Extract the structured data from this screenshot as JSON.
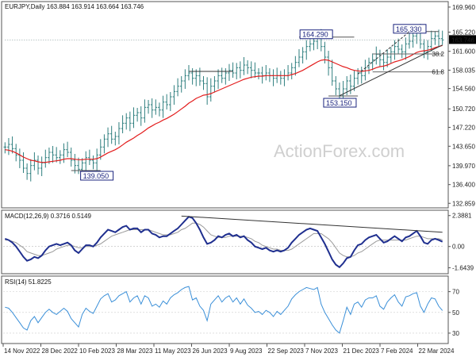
{
  "header": {
    "price_title": "EURJPY,Daily  163.884 163.914 163.664 163.746",
    "macd_title": "MACD(12,26,9) 0.3716 0.5149",
    "rsi_title": "RSI(14) 51.8225"
  },
  "watermark": "ActionForex.com",
  "colors": {
    "bar": "#2f7f7f",
    "ema": "#e31c1c",
    "macd": "#1f2f8f",
    "signal": "#9a9a9a",
    "rsi": "#3a8fd8",
    "trend": "#333333",
    "box": "#1a237e",
    "current_label_bg": "#000000"
  },
  "chart_data": [
    {
      "type": "ohlc",
      "panel": "price",
      "symbol": "EURJPY",
      "timeframe": "Daily",
      "ylim": [
        132.0,
        171.0
      ],
      "y_ticks": [
        "169.960",
        "165.220",
        "161.600",
        "158.035",
        "154.560",
        "150.720",
        "147.220",
        "143.650",
        "139.970",
        "136.400",
        "132.859"
      ],
      "y_tick_values": [
        169.96,
        165.22,
        161.6,
        158.035,
        154.56,
        150.72,
        147.22,
        143.65,
        139.97,
        136.4,
        132.859
      ],
      "current_price": "163.746",
      "current_value": 163.746,
      "x_ticks": [
        "14 Nov 2022",
        "28 Dec 2022",
        "10 Feb 2023",
        "28 Mar 2023",
        "11 May 2023",
        "26 Jun 2023",
        "9 Aug 2023",
        "22 Sep 2023",
        "7 Nov 2023",
        "21 Dec 2023",
        "7 Feb 2024",
        "22 Mar 2024"
      ],
      "close": [
        143.5,
        144.0,
        143.2,
        142.0,
        141.0,
        139.5,
        138.5,
        140.0,
        141.0,
        139.5,
        140.5,
        141.5,
        142.5,
        142.0,
        141.5,
        142.0,
        143.0,
        142.5,
        141.0,
        140.0,
        139.3,
        140.5,
        141.5,
        141.0,
        140.5,
        142.0,
        143.5,
        145.0,
        146.0,
        145.0,
        145.5,
        147.0,
        148.0,
        149.0,
        148.0,
        149.5,
        150.0,
        149.0,
        151.0,
        151.5,
        150.5,
        151.0,
        150.5,
        152.0,
        151.5,
        153.0,
        154.0,
        155.0,
        156.0,
        157.0,
        157.5,
        156.5,
        157.0,
        156.0,
        155.5,
        153.0,
        155.0,
        156.0,
        157.0,
        156.5,
        157.5,
        158.0,
        157.5,
        158.5,
        158.0,
        159.0,
        158.5,
        158.0,
        157.5,
        157.5,
        157.0,
        157.5,
        157.0,
        156.5,
        157.0,
        156.5,
        157.0,
        157.5,
        158.5,
        159.5,
        160.5,
        161.5,
        162.5,
        163.0,
        163.5,
        164.3,
        162.5,
        160.5,
        158.5,
        156.0,
        154.5,
        153.2,
        154.5,
        156.0,
        155.0,
        156.5,
        157.5,
        157.0,
        158.5,
        159.5,
        160.0,
        161.0,
        160.0,
        159.5,
        160.5,
        161.5,
        162.5,
        162.0,
        161.5,
        163.0,
        163.5,
        164.5,
        165.3,
        163.0,
        161.5,
        162.5,
        164.0,
        164.5,
        164.0,
        163.746
      ],
      "ema": [
        143.0,
        142.9,
        142.7,
        142.4,
        142.0,
        141.6,
        141.3,
        141.0,
        140.9,
        140.7,
        140.6,
        140.6,
        140.7,
        140.8,
        140.9,
        141.0,
        141.2,
        141.3,
        141.3,
        141.2,
        141.1,
        141.1,
        141.2,
        141.2,
        141.2,
        141.3,
        141.6,
        142.0,
        142.4,
        142.7,
        143.0,
        143.4,
        143.9,
        144.4,
        144.8,
        145.2,
        145.7,
        146.1,
        146.6,
        147.1,
        147.5,
        147.9,
        148.2,
        148.6,
        148.9,
        149.3,
        149.7,
        150.2,
        150.7,
        151.2,
        151.8,
        152.2,
        152.7,
        153.0,
        153.3,
        153.4,
        153.6,
        153.9,
        154.2,
        154.5,
        154.8,
        155.1,
        155.4,
        155.7,
        156.0,
        156.3,
        156.5,
        156.7,
        156.8,
        156.9,
        156.9,
        157.0,
        157.0,
        157.0,
        157.0,
        157.0,
        157.0,
        157.0,
        157.2,
        157.4,
        157.7,
        158.0,
        158.4,
        158.8,
        159.2,
        159.6,
        159.9,
        160.0,
        159.9,
        159.6,
        159.3,
        159.0,
        158.7,
        158.5,
        158.2,
        158.0,
        157.9,
        157.8,
        157.9,
        158.0,
        158.2,
        158.5,
        158.7,
        158.8,
        159.0,
        159.3,
        159.6,
        159.8,
        160.0,
        160.3,
        160.6,
        161.0,
        161.4,
        161.6,
        161.7,
        161.8,
        162.0,
        162.3,
        162.5,
        162.7
      ],
      "annotations": [
        {
          "label": "164.290",
          "value": 164.29
        },
        {
          "label": "165.330",
          "value": 165.33
        },
        {
          "label": "153.150",
          "value": 153.15
        },
        {
          "label": "139.050",
          "value": 139.05
        },
        {
          "label": "38.2",
          "value": 161.1
        },
        {
          "label": "61.8",
          "value": 157.7
        }
      ]
    },
    {
      "type": "macd",
      "panel": "macd",
      "ylim": [
        -2.1,
        2.8
      ],
      "y_ticks": [
        "2.3881",
        "0.00",
        "-1.6439"
      ],
      "y_tick_values": [
        2.3881,
        0.0,
        -1.6439
      ],
      "macd": [
        0.6,
        0.5,
        0.3,
        0.0,
        -0.4,
        -0.8,
        -1.1,
        -1.0,
        -0.8,
        -0.9,
        -0.7,
        -0.3,
        0.0,
        0.1,
        0.2,
        0.1,
        0.2,
        0.3,
        0.1,
        -0.3,
        -0.5,
        -0.2,
        0.1,
        0.1,
        0.0,
        0.3,
        0.7,
        1.0,
        1.3,
        1.2,
        1.1,
        1.3,
        1.5,
        1.6,
        1.3,
        1.4,
        1.4,
        1.1,
        1.3,
        1.3,
        1.0,
        0.9,
        0.7,
        0.8,
        0.8,
        1.0,
        1.2,
        1.4,
        1.7,
        2.0,
        2.3,
        2.2,
        1.8,
        1.3,
        0.7,
        0.2,
        0.3,
        0.5,
        0.8,
        0.7,
        0.9,
        1.0,
        0.8,
        0.9,
        0.7,
        0.8,
        0.5,
        0.3,
        0.0,
        -0.1,
        -0.2,
        -0.1,
        -0.3,
        -0.4,
        -0.3,
        -0.4,
        -0.3,
        -0.1,
        0.3,
        0.6,
        0.9,
        1.1,
        1.3,
        1.4,
        1.3,
        1.2,
        0.7,
        0.2,
        -0.4,
        -1.0,
        -1.4,
        -1.6,
        -1.3,
        -0.9,
        -0.8,
        -0.3,
        0.1,
        0.2,
        0.5,
        0.7,
        0.8,
        0.9,
        0.6,
        0.3,
        0.4,
        0.6,
        0.8,
        0.6,
        0.4,
        0.7,
        0.8,
        1.0,
        1.2,
        0.8,
        0.3,
        0.2,
        0.5,
        0.6,
        0.5,
        0.37
      ],
      "signal": [
        0.5,
        0.5,
        0.4,
        0.3,
        0.1,
        -0.1,
        -0.4,
        -0.5,
        -0.6,
        -0.7,
        -0.7,
        -0.6,
        -0.5,
        -0.4,
        -0.2,
        -0.1,
        0.0,
        0.1,
        0.1,
        0.0,
        -0.1,
        -0.1,
        0.0,
        0.0,
        0.0,
        0.1,
        0.2,
        0.4,
        0.6,
        0.8,
        0.9,
        1.0,
        1.1,
        1.2,
        1.3,
        1.3,
        1.3,
        1.3,
        1.3,
        1.3,
        1.2,
        1.1,
        1.0,
        0.9,
        0.9,
        0.9,
        1.0,
        1.1,
        1.3,
        1.4,
        1.6,
        1.8,
        1.8,
        1.7,
        1.5,
        1.2,
        0.9,
        0.8,
        0.7,
        0.7,
        0.7,
        0.8,
        0.8,
        0.8,
        0.8,
        0.8,
        0.7,
        0.6,
        0.4,
        0.3,
        0.1,
        0.0,
        -0.1,
        -0.2,
        -0.2,
        -0.3,
        -0.3,
        -0.3,
        -0.2,
        0.0,
        0.2,
        0.4,
        0.6,
        0.8,
        1.0,
        1.0,
        1.0,
        0.8,
        0.6,
        0.3,
        -0.1,
        -0.5,
        -0.7,
        -0.8,
        -0.8,
        -0.7,
        -0.5,
        -0.4,
        -0.2,
        0.0,
        0.2,
        0.4,
        0.5,
        0.5,
        0.5,
        0.5,
        0.5,
        0.5,
        0.5,
        0.5,
        0.6,
        0.7,
        0.8,
        0.8,
        0.7,
        0.6,
        0.6,
        0.6,
        0.6,
        0.51
      ],
      "trendline": {
        "from": [
          48,
          2.35
        ],
        "to": [
          119,
          1.1
        ]
      }
    },
    {
      "type": "line",
      "panel": "rsi",
      "ylim": [
        20,
        85
      ],
      "y_ticks": [
        "70",
        "50",
        "30"
      ],
      "y_tick_values": [
        70,
        50,
        30
      ],
      "values": [
        55,
        54,
        50,
        45,
        40,
        35,
        33,
        42,
        46,
        40,
        45,
        50,
        53,
        50,
        48,
        51,
        54,
        51,
        44,
        40,
        36,
        48,
        54,
        51,
        49,
        56,
        63,
        66,
        68,
        60,
        62,
        66,
        68,
        70,
        60,
        64,
        66,
        58,
        66,
        64,
        56,
        58,
        55,
        61,
        58,
        64,
        67,
        69,
        72,
        74,
        75,
        62,
        64,
        56,
        52,
        42,
        58,
        62,
        66,
        60,
        64,
        66,
        60,
        64,
        58,
        63,
        57,
        54,
        50,
        51,
        48,
        52,
        50,
        46,
        51,
        48,
        52,
        56,
        63,
        67,
        70,
        72,
        74,
        73,
        72,
        74,
        58,
        50,
        44,
        38,
        33,
        30,
        42,
        55,
        48,
        58,
        60,
        55,
        62,
        64,
        64,
        66,
        56,
        53,
        60,
        64,
        67,
        60,
        56,
        65,
        66,
        68,
        69,
        56,
        50,
        58,
        64,
        63,
        56,
        51.8
      ]
    }
  ]
}
